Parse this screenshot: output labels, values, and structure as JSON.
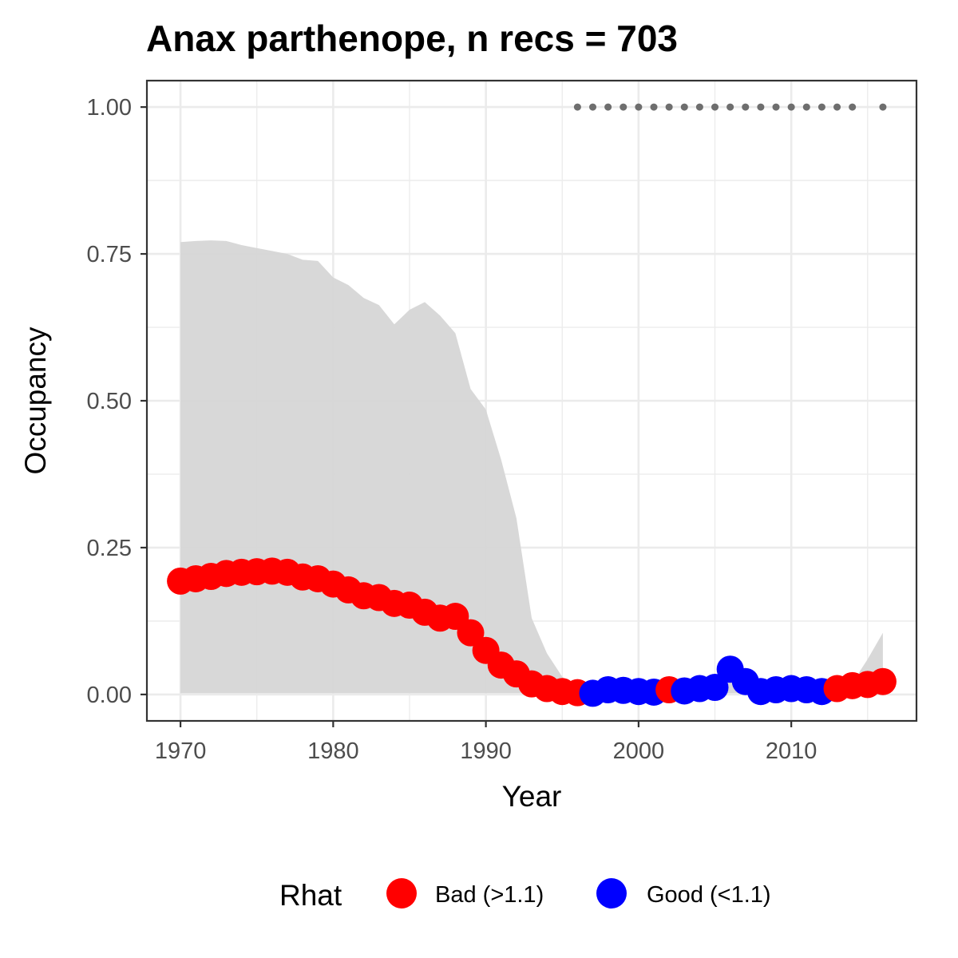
{
  "chart_data": {
    "type": "line",
    "title": "Anax parthenope, n recs = 703",
    "xlabel": "Year",
    "ylabel": "Occupancy",
    "xlim": [
      1967.8,
      2018.2
    ],
    "ylim": [
      -0.045,
      1.045
    ],
    "x_ticks": [
      1970,
      1980,
      1990,
      2000,
      2010
    ],
    "x_tick_labels": [
      "1970",
      "1980",
      "1990",
      "2000",
      "2010"
    ],
    "y_ticks": [
      0,
      0.25,
      0.5,
      0.75,
      1
    ],
    "y_tick_labels": [
      "0.00",
      "0.25",
      "0.50",
      "0.75",
      "1.00"
    ],
    "x_minor_ticks": [
      1975,
      1985,
      1995,
      2005,
      2015
    ],
    "y_minor_ticks": [
      0.125,
      0.375,
      0.625,
      0.875
    ],
    "grid": true,
    "legend_position": "bottom",
    "legend": {
      "title": "Rhat",
      "entries": [
        {
          "label": "Bad (>1.1)",
          "color": "#ff0000"
        },
        {
          "label": "Good (<1.1)",
          "color": "#0000ff"
        }
      ]
    },
    "colors": {
      "bad": "#ff0000",
      "good": "#0000ff",
      "ribbon": "#d6d6d6",
      "record_dots": "#6e6e6e",
      "panel_border": "#333333",
      "grid": "#ebebeb"
    },
    "credible_interval": {
      "x": [
        1970,
        1971,
        1972,
        1973,
        1974,
        1975,
        1976,
        1977,
        1978,
        1979,
        1980,
        1981,
        1982,
        1983,
        1984,
        1985,
        1986,
        1987,
        1988,
        1989,
        1990,
        1991,
        1992,
        1993,
        1994,
        1995,
        1996,
        1997,
        1998,
        1999,
        2000,
        2001,
        2002,
        2003,
        2004,
        2005,
        2006,
        2007,
        2008,
        2009,
        2010,
        2011,
        2012,
        2013,
        2014,
        2015,
        2016
      ],
      "lower": [
        0.002,
        0.002,
        0.002,
        0.002,
        0.002,
        0.002,
        0.002,
        0.002,
        0.002,
        0.002,
        0.002,
        0.002,
        0.002,
        0.002,
        0.002,
        0.002,
        0.002,
        0.002,
        0.002,
        0.002,
        0.002,
        0.002,
        0.002,
        0.002,
        0.002,
        0.002,
        0.002,
        0.002,
        0.002,
        0.002,
        0.002,
        0.002,
        0.002,
        0.002,
        0.002,
        0.002,
        0.002,
        0.002,
        0.002,
        0.002,
        0.002,
        0.002,
        0.002,
        0.002,
        0.002,
        0.002,
        0.002
      ],
      "upper": [
        0.77,
        0.772,
        0.773,
        0.772,
        0.765,
        0.76,
        0.755,
        0.75,
        0.74,
        0.738,
        0.71,
        0.697,
        0.675,
        0.663,
        0.63,
        0.655,
        0.668,
        0.645,
        0.615,
        0.52,
        0.485,
        0.4,
        0.3,
        0.13,
        0.07,
        0.03,
        0.01,
        0.008,
        0.008,
        0.008,
        0.008,
        0.008,
        0.01,
        0.01,
        0.012,
        0.015,
        0.045,
        0.018,
        0.01,
        0.01,
        0.01,
        0.01,
        0.01,
        0.01,
        0.02,
        0.06,
        0.105
      ]
    },
    "series": [
      {
        "x": [
          1970,
          1971,
          1972,
          1973,
          1974,
          1975,
          1976,
          1977,
          1978,
          1979,
          1980,
          1981,
          1982,
          1983,
          1984,
          1985,
          1986,
          1987,
          1988,
          1989,
          1990,
          1991,
          1992,
          1993,
          1994,
          1995,
          1996,
          1997,
          1998,
          1999,
          2000,
          2001,
          2002,
          2003,
          2004,
          2005,
          2006,
          2007,
          2008,
          2009,
          2010,
          2011,
          2012,
          2013,
          2014,
          2015,
          2016
        ],
        "values": [
          0.193,
          0.197,
          0.201,
          0.206,
          0.208,
          0.209,
          0.21,
          0.208,
          0.2,
          0.197,
          0.188,
          0.178,
          0.168,
          0.165,
          0.155,
          0.152,
          0.14,
          0.13,
          0.133,
          0.105,
          0.075,
          0.05,
          0.035,
          0.018,
          0.01,
          0.005,
          0.003,
          0.002,
          0.008,
          0.007,
          0.005,
          0.004,
          0.008,
          0.006,
          0.01,
          0.012,
          0.043,
          0.022,
          0.005,
          0.008,
          0.01,
          0.008,
          0.005,
          0.01,
          0.015,
          0.017,
          0.022
        ],
        "rhat": [
          "Bad (>1.1)",
          "Bad (>1.1)",
          "Bad (>1.1)",
          "Bad (>1.1)",
          "Bad (>1.1)",
          "Bad (>1.1)",
          "Bad (>1.1)",
          "Bad (>1.1)",
          "Bad (>1.1)",
          "Bad (>1.1)",
          "Bad (>1.1)",
          "Bad (>1.1)",
          "Bad (>1.1)",
          "Bad (>1.1)",
          "Bad (>1.1)",
          "Bad (>1.1)",
          "Bad (>1.1)",
          "Bad (>1.1)",
          "Bad (>1.1)",
          "Bad (>1.1)",
          "Bad (>1.1)",
          "Bad (>1.1)",
          "Bad (>1.1)",
          "Bad (>1.1)",
          "Bad (>1.1)",
          "Bad (>1.1)",
          "Bad (>1.1)",
          "Good (<1.1)",
          "Good (<1.1)",
          "Good (<1.1)",
          "Good (<1.1)",
          "Good (<1.1)",
          "Bad (>1.1)",
          "Good (<1.1)",
          "Good (<1.1)",
          "Good (<1.1)",
          "Good (<1.1)",
          "Good (<1.1)",
          "Good (<1.1)",
          "Good (<1.1)",
          "Good (<1.1)",
          "Good (<1.1)",
          "Good (<1.1)",
          "Bad (>1.1)",
          "Bad (>1.1)",
          "Bad (>1.1)",
          "Bad (>1.1)"
        ]
      }
    ],
    "record_years": {
      "x": [
        1996,
        1997,
        1998,
        1999,
        2000,
        2001,
        2002,
        2003,
        2004,
        2005,
        2006,
        2007,
        2008,
        2009,
        2010,
        2011,
        2012,
        2013,
        2014,
        2016
      ],
      "y": 1.0
    }
  }
}
